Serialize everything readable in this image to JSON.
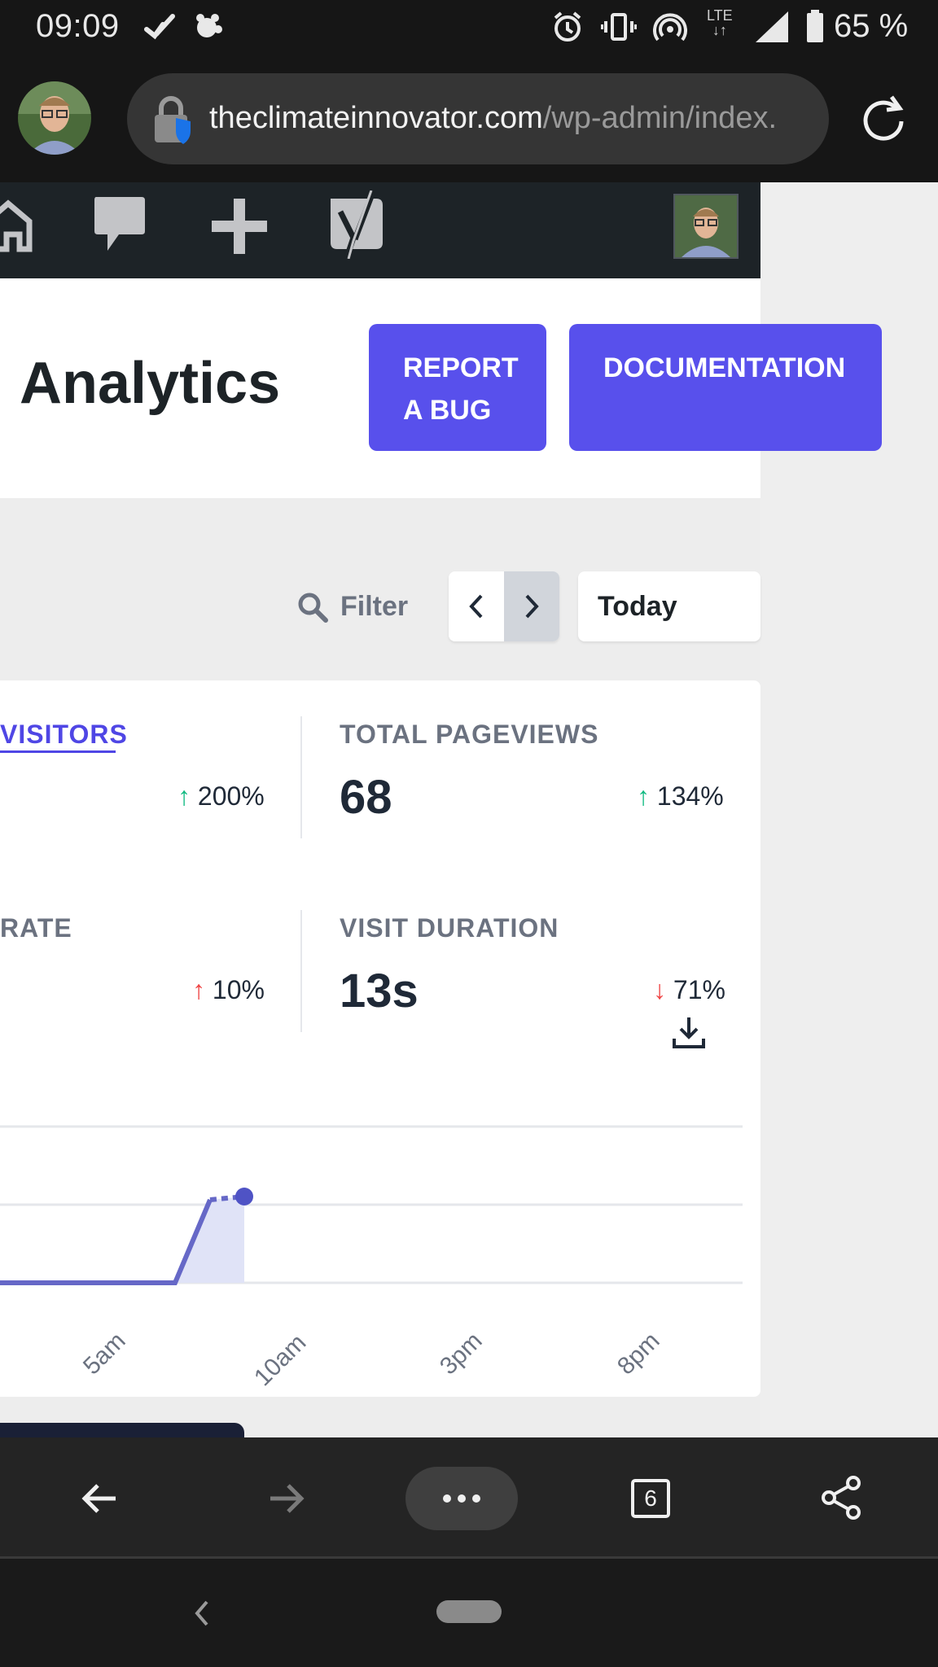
{
  "status_bar": {
    "time": "09:09",
    "battery": "65 %",
    "network": "LTE"
  },
  "browser": {
    "url_host": "theclimateinnovator.com",
    "url_path": "/wp-admin/index.",
    "tab_count": "6"
  },
  "header": {
    "title": "Analytics",
    "report_bug_line1": "REPORT",
    "report_bug_line2": "A BUG",
    "documentation": "DOCUMENTATION"
  },
  "filter": {
    "label": "Filter",
    "period": "Today"
  },
  "stats": {
    "visitors": {
      "label": "VISITORS",
      "change": "200%"
    },
    "pageviews": {
      "label": "TOTAL PAGEVIEWS",
      "value": "68",
      "change": "134%"
    },
    "bounce": {
      "label": "RATE",
      "change": "10%"
    },
    "duration": {
      "label": "VISIT DURATION",
      "value": "13s",
      "change": "71%"
    }
  },
  "chart_data": {
    "type": "area",
    "x_ticks": [
      "5am",
      "10am",
      "3pm",
      "8pm"
    ],
    "title": "",
    "xlabel": "",
    "ylabel": ""
  },
  "colors": {
    "accent": "#5850ec",
    "admin_bar": "#1d2327",
    "up": "#10b981",
    "down": "#ef4444"
  }
}
